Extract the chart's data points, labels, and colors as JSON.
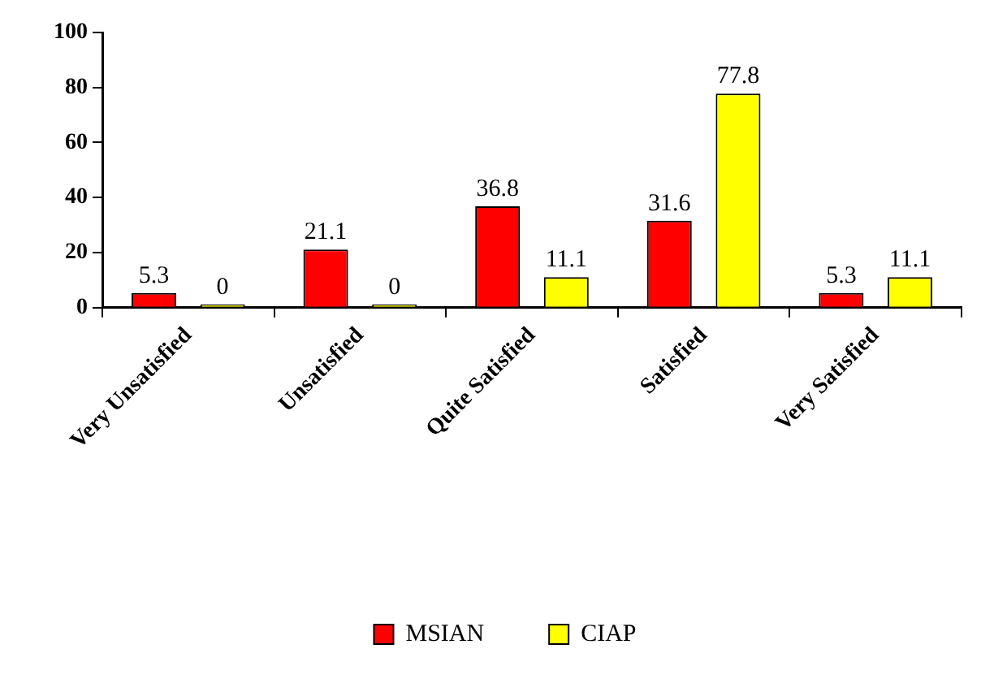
{
  "chart_data": {
    "type": "bar",
    "categories": [
      "Very Unsatisfied",
      "Unsatisfied",
      "Quite Satisfied",
      "Satisfied",
      "Very Satisfied"
    ],
    "series": [
      {
        "name": "MSIAN",
        "color": "#ff0000",
        "values": [
          5.3,
          21.1,
          36.8,
          31.6,
          5.3
        ]
      },
      {
        "name": "CIAP",
        "color": "#ffff00",
        "values": [
          0,
          0,
          11.1,
          77.8,
          11.1
        ]
      }
    ],
    "ylim": [
      0,
      100
    ],
    "yticks": [
      0,
      20,
      40,
      60,
      80,
      100
    ],
    "grid": false,
    "legend": "bottom",
    "data_labels": true
  }
}
